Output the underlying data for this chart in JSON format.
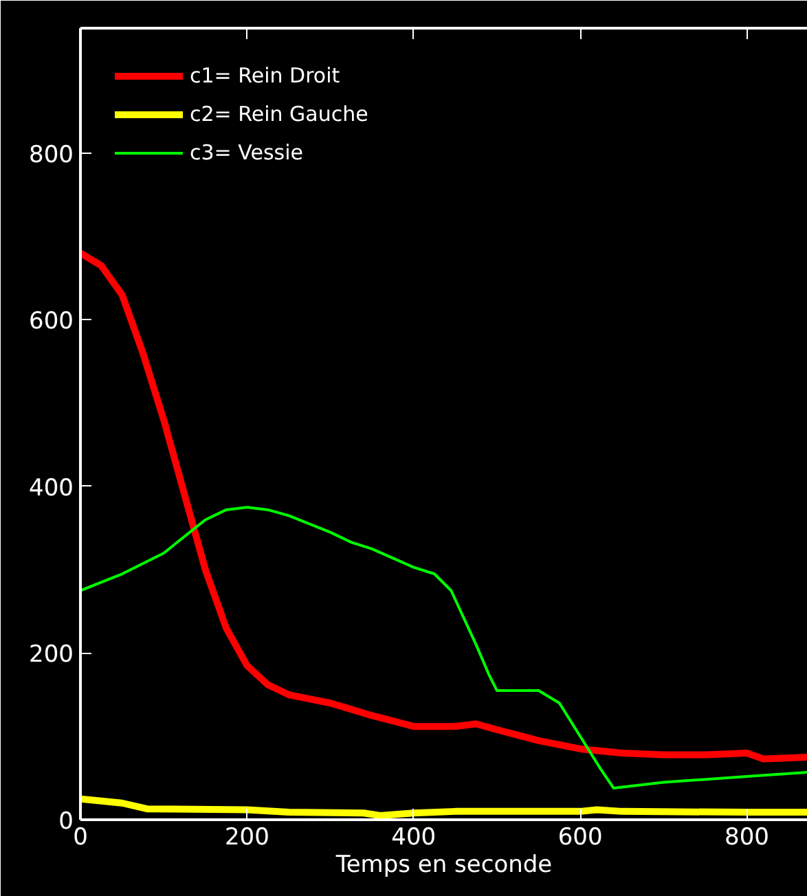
{
  "chart_data": {
    "type": "line",
    "xlabel": "Temps en seconde",
    "xlim": [
      0,
      873
    ],
    "xticks": [
      0,
      200,
      400,
      600,
      800
    ],
    "ylim": [
      0,
      950
    ],
    "yticks": [
      0,
      200,
      400,
      600,
      800
    ],
    "grid": false,
    "legend": "top left",
    "line_style": "solid",
    "series": [
      {
        "name": "c1= Rein Droit",
        "color": "#ff0000",
        "x": [
          0,
          25,
          50,
          75,
          100,
          125,
          150,
          175,
          200,
          225,
          250,
          300,
          350,
          400,
          450,
          475,
          500,
          550,
          600,
          650,
          700,
          750,
          800,
          820,
          873
        ],
        "values": [
          680,
          665,
          630,
          560,
          480,
          390,
          300,
          230,
          185,
          162,
          150,
          140,
          125,
          112,
          112,
          115,
          108,
          95,
          85,
          80,
          78,
          78,
          80,
          73,
          75
        ]
      },
      {
        "name": "c2= Rein Gauche",
        "color": "#ffff00",
        "x": [
          0,
          50,
          80,
          200,
          250,
          340,
          360,
          400,
          450,
          600,
          620,
          650,
          800,
          873
        ],
        "values": [
          25,
          20,
          13,
          12,
          9,
          8,
          5,
          8,
          10,
          10,
          12,
          10,
          9,
          9
        ]
      },
      {
        "name": "c3= Vessie",
        "color": "#00ff00",
        "x": [
          0,
          25,
          50,
          100,
          150,
          175,
          200,
          225,
          250,
          300,
          325,
          350,
          400,
          425,
          445,
          475,
          490,
          500,
          550,
          575,
          600,
          625,
          640,
          700,
          800,
          873
        ],
        "values": [
          275,
          285,
          295,
          320,
          360,
          372,
          375,
          372,
          365,
          345,
          333,
          325,
          303,
          295,
          275,
          210,
          175,
          155,
          155,
          140,
          100,
          60,
          38,
          45,
          52,
          57
        ]
      }
    ]
  }
}
